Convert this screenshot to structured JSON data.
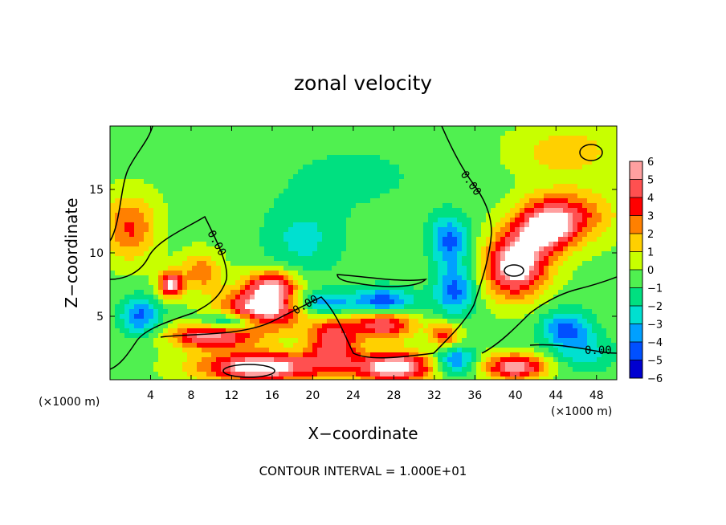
{
  "chart_data": {
    "type": "heatmap",
    "title": "zonal velocity",
    "xlabel": "X−coordinate",
    "ylabel": "Z−coordinate",
    "x_unit_left": "(×1000 m)",
    "x_unit_right": "(×1000 m)",
    "footer": "CONTOUR INTERVAL = 1.000E+01",
    "xlim": [
      0,
      50
    ],
    "ylim": [
      0,
      20
    ],
    "x_ticks": [
      4,
      8,
      12,
      16,
      20,
      24,
      28,
      32,
      36,
      40,
      44,
      48
    ],
    "y_ticks": [
      5,
      10,
      15
    ],
    "contour_labels": [
      "0.00",
      "0.00",
      "0.00",
      "0.00"
    ],
    "colorbar": {
      "ticks": [
        6,
        5,
        4,
        3,
        2,
        1,
        0,
        -1,
        -2,
        -3,
        -4,
        -5,
        -6
      ],
      "colors": [
        "#ffa0a0",
        "#ff5050",
        "#ff0000",
        "#ff8000",
        "#ffd000",
        "#c8ff00",
        "#50f050",
        "#00e080",
        "#00e0d0",
        "#00a0ff",
        "#0050ff",
        "#0000d0",
        "#8000a0"
      ]
    },
    "field_blobs": [
      {
        "x": 2,
        "z": 12,
        "v": 3.5,
        "sx": 2.5,
        "sz": 2.5
      },
      {
        "x": 6,
        "z": 7.5,
        "v": 6,
        "sx": 1.2,
        "sz": 1.0
      },
      {
        "x": 9,
        "z": 8.5,
        "v": 3,
        "sx": 2,
        "sz": 1.5
      },
      {
        "x": 15,
        "z": 5.5,
        "v": 7,
        "sx": 4,
        "sz": 1.6
      },
      {
        "x": 16,
        "z": 7.5,
        "v": 5,
        "sx": 2.5,
        "sz": 1.2
      },
      {
        "x": 10,
        "z": 3.5,
        "v": 6,
        "sx": 4,
        "sz": 1.0
      },
      {
        "x": 15,
        "z": 1,
        "v": 7,
        "sx": 6,
        "sz": 1.2
      },
      {
        "x": 22,
        "z": 3,
        "v": 5,
        "sx": 2.5,
        "sz": 2
      },
      {
        "x": 28,
        "z": 1,
        "v": 7,
        "sx": 4,
        "sz": 1.2
      },
      {
        "x": 27,
        "z": 4.5,
        "v": 6,
        "sx": 3,
        "sz": 1.2
      },
      {
        "x": 40,
        "z": 9,
        "v": 7,
        "sx": 3,
        "sz": 2.5
      },
      {
        "x": 43,
        "z": 12,
        "v": 6,
        "sx": 3,
        "sz": 2
      },
      {
        "x": 46,
        "z": 13,
        "v": 3,
        "sx": 4,
        "sz": 2
      },
      {
        "x": 40,
        "z": 1,
        "v": 6,
        "sx": 3,
        "sz": 1
      },
      {
        "x": 33,
        "z": 3.5,
        "v": 4,
        "sx": 1.5,
        "sz": 1
      },
      {
        "x": 3,
        "z": 5,
        "v": -4,
        "sx": 2,
        "sz": 1.5
      },
      {
        "x": 12,
        "z": 4.5,
        "v": -5,
        "sx": 3,
        "sz": 0.8
      },
      {
        "x": 21,
        "z": 6,
        "v": -4,
        "sx": 3,
        "sz": 1.0
      },
      {
        "x": 27,
        "z": 6,
        "v": -5,
        "sx": 3,
        "sz": 1.2
      },
      {
        "x": 33.5,
        "z": 11,
        "v": -4,
        "sx": 2,
        "sz": 2
      },
      {
        "x": 19,
        "z": 11,
        "v": -2,
        "sx": 4,
        "sz": 3
      },
      {
        "x": 34,
        "z": 7,
        "v": -4,
        "sx": 2,
        "sz": 2
      },
      {
        "x": 45,
        "z": 4,
        "v": -4,
        "sx": 2.5,
        "sz": 1.5
      },
      {
        "x": 47,
        "z": 2,
        "v": -2,
        "sx": 3,
        "sz": 1.5
      },
      {
        "x": 34,
        "z": 1.5,
        "v": -4,
        "sx": 2,
        "sz": 1.2
      },
      {
        "x": 24,
        "z": 16,
        "v": -1,
        "sx": 8,
        "sz": 3
      },
      {
        "x": 45,
        "z": 18,
        "v": 2,
        "sx": 5,
        "sz": 2
      }
    ]
  }
}
